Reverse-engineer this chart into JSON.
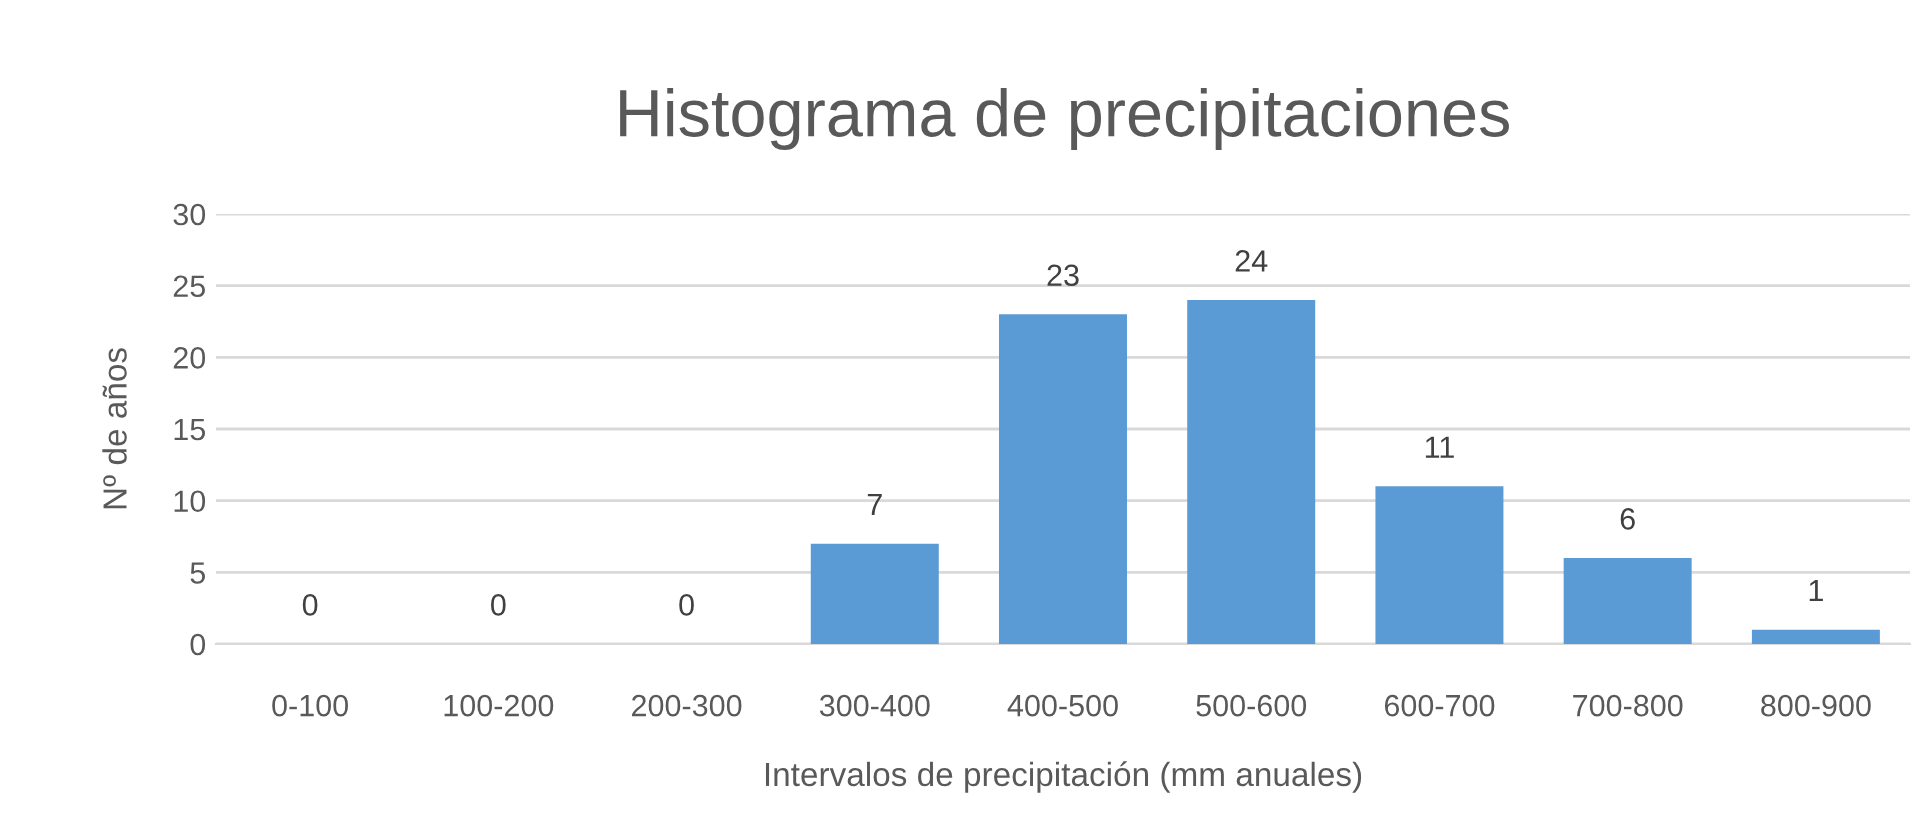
{
  "chart_data": {
    "type": "bar",
    "title": "Histograma de precipitaciones",
    "xlabel": "Intervalos de precipitación (mm anuales)",
    "ylabel": "Nº de años",
    "categories": [
      "0-100",
      "100-200",
      "200-300",
      "300-400",
      "400-500",
      "500-600",
      "600-700",
      "700-800",
      "800-900"
    ],
    "values": [
      0,
      0,
      0,
      7,
      23,
      24,
      11,
      6,
      1
    ],
    "color": "#5b9bd5",
    "ylim": [
      0,
      30
    ],
    "yticks": [
      0,
      5,
      10,
      15,
      20,
      25,
      30
    ],
    "grid": "y",
    "data_labels": true
  }
}
